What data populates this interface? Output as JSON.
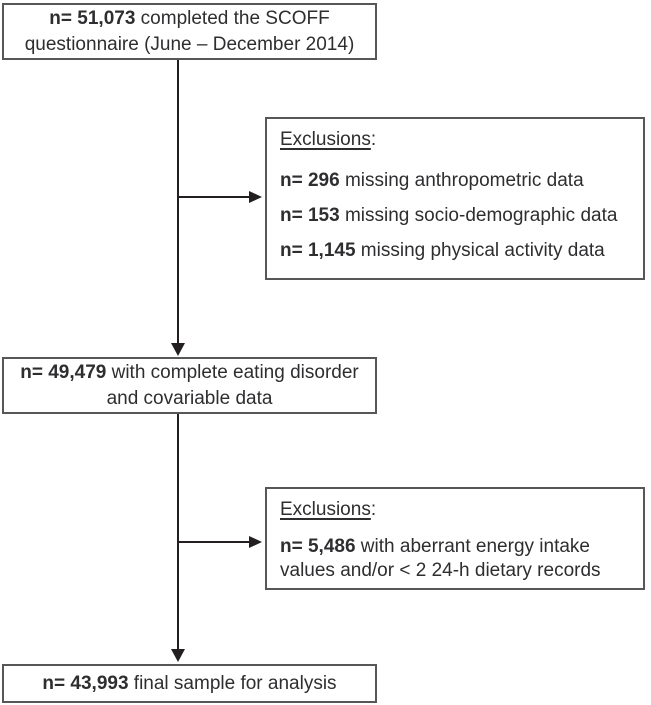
{
  "colors": {
    "background": "#ffffff",
    "box_border": "#57575a",
    "arrow": "#231f20",
    "text": "#2e2e30"
  },
  "flow": {
    "box_top": {
      "n": "n= 51,073",
      "line1_rest": " completed the SCOFF",
      "line2": "questionnaire (June – December 2014)"
    },
    "exclusions_1": {
      "heading": "Exclusions",
      "heading_colon": ":",
      "items": [
        {
          "n": "n= 296",
          "rest": " missing anthropometric data"
        },
        {
          "n": "n= 153",
          "rest": " missing socio-demographic data"
        },
        {
          "n": "n= 1,145",
          "rest": " missing physical activity data"
        }
      ]
    },
    "box_middle": {
      "n": "n= 49,479",
      "line1_rest": " with complete eating disorder",
      "line2": "and covariable data"
    },
    "exclusions_2": {
      "heading": "Exclusions",
      "heading_colon": ":",
      "items": [
        {
          "n": "n= 5,486",
          "rest": " with aberrant energy intake values and/or < 2 24-h dietary records"
        }
      ]
    },
    "box_bottom": {
      "n": "n= 43,993",
      "rest": " final sample for analysis"
    }
  }
}
